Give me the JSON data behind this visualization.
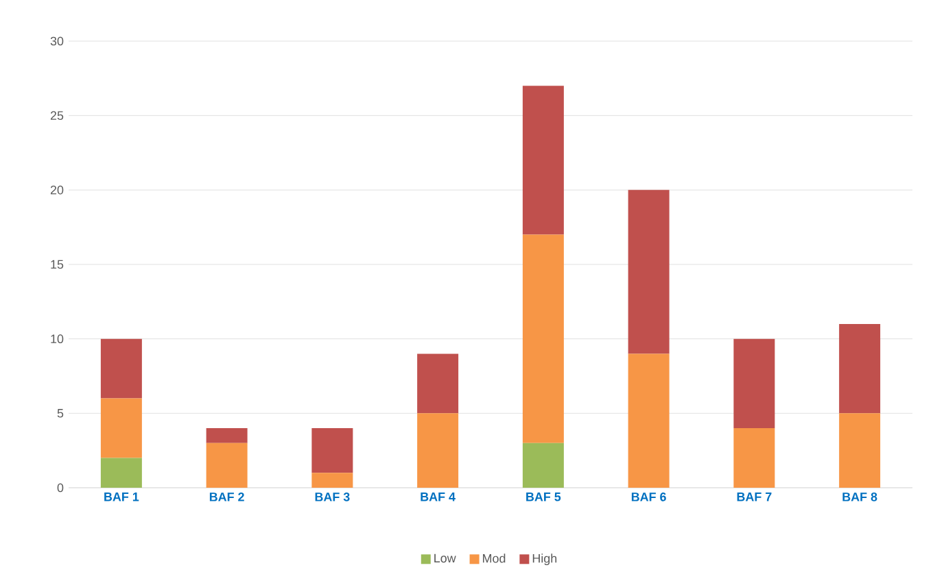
{
  "chart_data": {
    "type": "bar",
    "stacked": true,
    "categories": [
      "BAF 1",
      "BAF 2",
      "BAF 3",
      "BAF 4",
      "BAF 5",
      "BAF 6",
      "BAF 7",
      "BAF 8"
    ],
    "series": [
      {
        "name": "Low",
        "color": "#9bbb59",
        "values": [
          2,
          0,
          0,
          0,
          3,
          0,
          0,
          0
        ]
      },
      {
        "name": "Mod",
        "color": "#f79646",
        "values": [
          4,
          3,
          1,
          5,
          14,
          9,
          4,
          5
        ]
      },
      {
        "name": "High",
        "color": "#c0504d",
        "values": [
          4,
          1,
          3,
          4,
          10,
          11,
          6,
          6
        ]
      }
    ],
    "ylim": [
      0,
      30
    ],
    "yticks": [
      0,
      5,
      10,
      15,
      20,
      25,
      30
    ],
    "grid": "y",
    "legend": "bottom"
  }
}
